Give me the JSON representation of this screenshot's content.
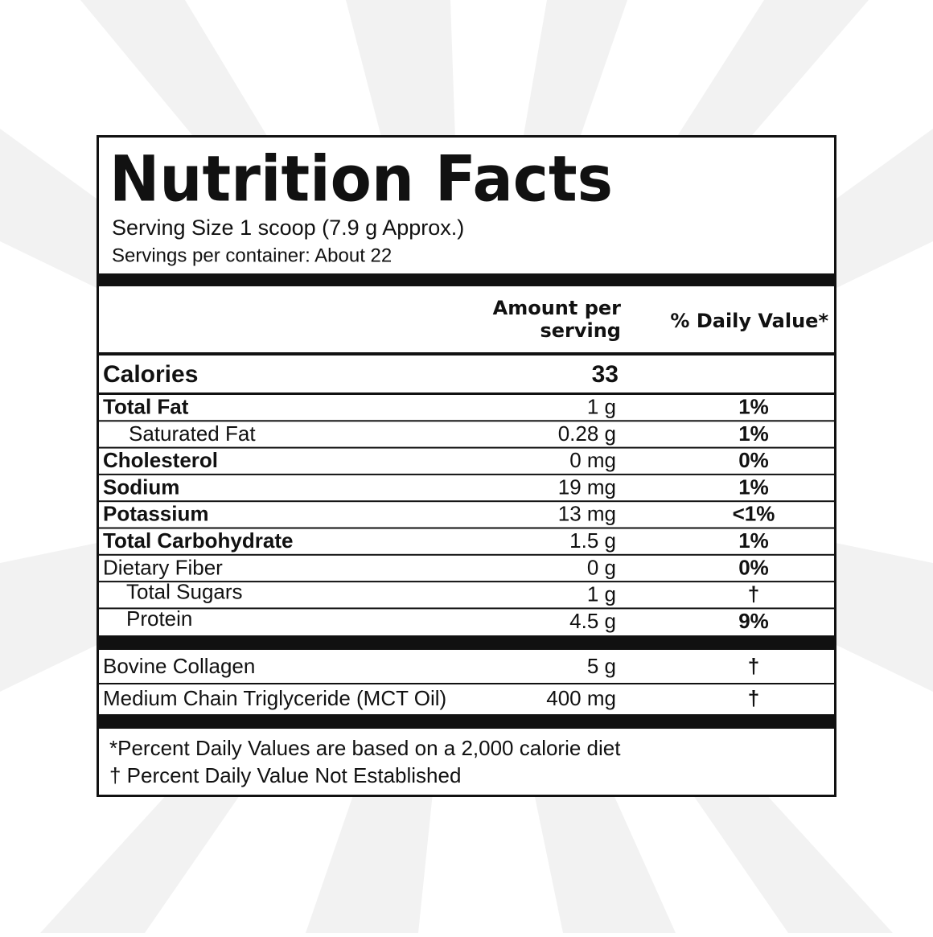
{
  "title": "Nutrition Facts",
  "serving_size": "Serving Size 1 scoop (7.9 g Approx.)",
  "servings_per_container": "Servings per container: About 22",
  "header": {
    "amount": "Amount per serving",
    "daily_value": "% Daily Value*"
  },
  "calories": {
    "label": "Calories",
    "amount": "33"
  },
  "nutrients": [
    {
      "name": "Total Fat",
      "amount": "1 g",
      "daily_value": "1%"
    },
    {
      "name": "Saturated Fat",
      "amount": "0.28 g",
      "daily_value": "1%"
    },
    {
      "name": "Cholesterol",
      "amount": "0 mg",
      "daily_value": "0%"
    },
    {
      "name": "Sodium",
      "amount": "19 mg",
      "daily_value": "1%"
    },
    {
      "name": "Potassium",
      "amount": "13 mg",
      "daily_value": "<1%"
    },
    {
      "name": "Total Carbohydrate",
      "amount": "1.5 g",
      "daily_value": "1%"
    },
    {
      "name": "Dietary Fiber",
      "amount": "0 g",
      "daily_value": "0%"
    },
    {
      "name": "Total Sugars",
      "amount": "1 g",
      "daily_value": "†"
    },
    {
      "name": "Protein",
      "amount": "4.5 g",
      "daily_value": "9%"
    }
  ],
  "other_ingredients": [
    {
      "name": "Bovine Collagen",
      "amount": "5 g",
      "daily_value": "†"
    },
    {
      "name": "Medium Chain Triglyceride (MCT Oil)",
      "amount": "400 mg",
      "daily_value": "†"
    }
  ],
  "footnotes": [
    "*Percent Daily Values are based on a 2,000 calorie diet",
    "† Percent Daily Value Not Established"
  ]
}
